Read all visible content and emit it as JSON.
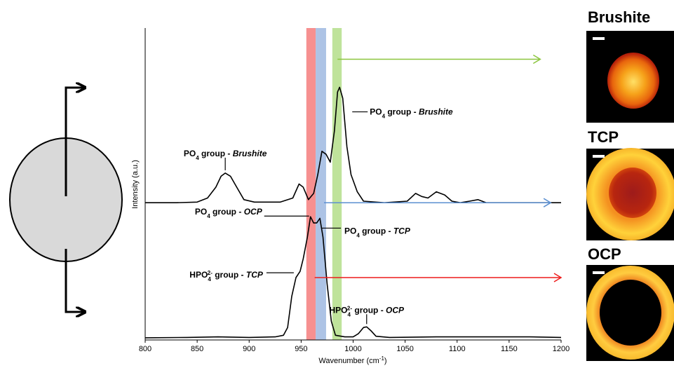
{
  "chart_data": {
    "type": "line",
    "xlabel": "Wavenumber (cm",
    "xlabel_sup": "-1",
    "xlabel_end": ")",
    "ylabel": "Intensity (a.u.)",
    "xlim": [
      800,
      1200
    ],
    "ylim": [
      0,
      1
    ],
    "x_ticks": [
      "800",
      "850",
      "900",
      "950",
      "1000",
      "1050",
      "1100",
      "1150",
      "1200"
    ],
    "bands": [
      {
        "x0": 955,
        "x1": 964,
        "color": "#f47c7c"
      },
      {
        "x0": 964,
        "x1": 974,
        "color": "#9fb9e0"
      },
      {
        "x0": 980,
        "x1": 989,
        "color": "#b4de8a"
      }
    ],
    "series": [
      {
        "color": "#000000",
        "points": [
          [
            800,
            0.44
          ],
          [
            830,
            0.44
          ],
          [
            850,
            0.442
          ],
          [
            860,
            0.455
          ],
          [
            868,
            0.49
          ],
          [
            873,
            0.525
          ],
          [
            877,
            0.535
          ],
          [
            882,
            0.525
          ],
          [
            888,
            0.49
          ],
          [
            895,
            0.45
          ],
          [
            905,
            0.442
          ],
          [
            930,
            0.442
          ],
          [
            942,
            0.455
          ],
          [
            948,
            0.5
          ],
          [
            952,
            0.49
          ],
          [
            957,
            0.45
          ],
          [
            962,
            0.47
          ],
          [
            966,
            0.53
          ],
          [
            970,
            0.605
          ],
          [
            974,
            0.595
          ],
          [
            978,
            0.57
          ],
          [
            982,
            0.67
          ],
          [
            985,
            0.795
          ],
          [
            987,
            0.81
          ],
          [
            990,
            0.775
          ],
          [
            994,
            0.62
          ],
          [
            998,
            0.53
          ],
          [
            1004,
            0.475
          ],
          [
            1010,
            0.445
          ],
          [
            1030,
            0.44
          ],
          [
            1052,
            0.445
          ],
          [
            1060,
            0.47
          ],
          [
            1066,
            0.46
          ],
          [
            1072,
            0.455
          ],
          [
            1080,
            0.475
          ],
          [
            1088,
            0.465
          ],
          [
            1095,
            0.445
          ],
          [
            1103,
            0.44
          ],
          [
            1112,
            0.445
          ],
          [
            1120,
            0.45
          ],
          [
            1128,
            0.44
          ],
          [
            1150,
            0.44
          ],
          [
            1200,
            0.44
          ]
        ]
      },
      {
        "color": "#000000",
        "points": [
          [
            800,
            0.007
          ],
          [
            840,
            0.008
          ],
          [
            870,
            0.01
          ],
          [
            900,
            0.008
          ],
          [
            925,
            0.01
          ],
          [
            933,
            0.015
          ],
          [
            937,
            0.04
          ],
          [
            941,
            0.14
          ],
          [
            945,
            0.2
          ],
          [
            949,
            0.22
          ],
          [
            952,
            0.26
          ],
          [
            956,
            0.33
          ],
          [
            959,
            0.395
          ],
          [
            962,
            0.375
          ],
          [
            965,
            0.375
          ],
          [
            968,
            0.39
          ],
          [
            971,
            0.33
          ],
          [
            975,
            0.18
          ],
          [
            979,
            0.06
          ],
          [
            983,
            0.015
          ],
          [
            992,
            0.01
          ],
          [
            1000,
            0.01
          ],
          [
            1005,
            0.02
          ],
          [
            1010,
            0.04
          ],
          [
            1013,
            0.042
          ],
          [
            1017,
            0.03
          ],
          [
            1022,
            0.012
          ],
          [
            1035,
            0.008
          ],
          [
            1080,
            0.01
          ],
          [
            1130,
            0.01
          ],
          [
            1170,
            0.01
          ],
          [
            1200,
            0.008
          ]
        ]
      }
    ],
    "annotations": [
      {
        "x": 877,
        "y": 0.535,
        "text_before": "PO",
        "sub": "4",
        "sup": "",
        "text_mid": " group - ",
        "italic": "Brushite"
      },
      {
        "x": 987,
        "y": 0.81,
        "text_before": "PO",
        "sub": "4",
        "sup": "",
        "text_mid": " group - ",
        "italic": "Brushite"
      },
      {
        "x": 959,
        "y": 0.395,
        "text_before": "PO",
        "sub": "4",
        "sup": "",
        "text_mid": " group - ",
        "italic": "OCP"
      },
      {
        "x": 968,
        "y": 0.39,
        "text_before": "PO",
        "sub": "4",
        "sup": "",
        "text_mid": " group - ",
        "italic": "TCP"
      },
      {
        "x": 949,
        "y": 0.22,
        "text_before": "HPO",
        "sub": "4",
        "sup": "2-",
        "text_mid": " group - ",
        "italic": "TCP"
      },
      {
        "x": 1013,
        "y": 0.042,
        "text_before": "HPO",
        "sub": "4",
        "sup": "2-",
        "text_mid": " group - ",
        "italic": "OCP"
      }
    ],
    "arrows": [
      {
        "color": "#8cc63f",
        "y": 0.9,
        "from_x": 985,
        "to_x": 1180
      },
      {
        "color": "#5b8fd1",
        "y": 0.44,
        "from_x": 972,
        "to_x": 1190
      },
      {
        "color": "#ee1c1c",
        "y": 0.2,
        "from_x": 963,
        "to_x": 1200
      }
    ]
  },
  "maps": [
    {
      "title": "Brushite",
      "pattern": "small"
    },
    {
      "title": "TCP",
      "pattern": "ring_filled"
    },
    {
      "title": "OCP",
      "pattern": "ring_hollow"
    }
  ],
  "schematic": {
    "fill": "#d9d9d9"
  }
}
